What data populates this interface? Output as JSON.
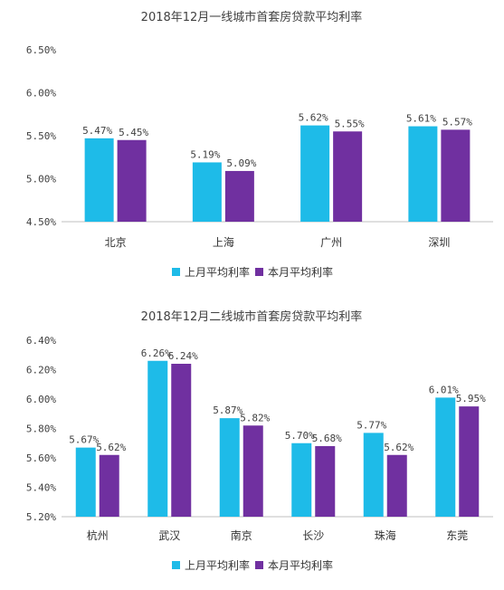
{
  "colors": {
    "last_month": "#1ebbe8",
    "this_month": "#7030a0"
  },
  "chart_data": [
    {
      "type": "bar",
      "title": "2018年12月一线城市首套房贷款平均利率",
      "categories": [
        "北京",
        "上海",
        "广州",
        "深圳"
      ],
      "series": [
        {
          "name": "上月平均利率",
          "values": [
            5.47,
            5.19,
            5.62,
            5.61
          ],
          "labels": [
            "5.47%",
            "5.19%",
            "5.62%",
            "5.61%"
          ]
        },
        {
          "name": "本月平均利率",
          "values": [
            5.45,
            5.09,
            5.55,
            5.57
          ],
          "labels": [
            "5.45%",
            "5.09%",
            "5.55%",
            "5.57%"
          ]
        }
      ],
      "ylim": [
        4.5,
        6.5
      ],
      "yticks": [
        4.5,
        5.0,
        5.5,
        6.0,
        6.5
      ],
      "ytick_labels": [
        "4.50%",
        "5.00%",
        "5.50%",
        "6.00%",
        "6.50%"
      ],
      "legend_position": "bottom",
      "grid": false
    },
    {
      "type": "bar",
      "title": "2018年12月二线城市首套房贷款平均利率",
      "categories": [
        "杭州",
        "武汉",
        "南京",
        "长沙",
        "珠海",
        "东莞"
      ],
      "series": [
        {
          "name": "上月平均利率",
          "values": [
            5.67,
            6.26,
            5.87,
            5.7,
            5.77,
            6.01
          ],
          "labels": [
            "5.67%",
            "6.26%",
            "5.87%",
            "5.70%",
            "5.77%",
            "6.01%"
          ]
        },
        {
          "name": "本月平均利率",
          "values": [
            5.62,
            6.24,
            5.82,
            5.68,
            5.62,
            5.95
          ],
          "labels": [
            "5.62%",
            "6.24%",
            "5.82%",
            "5.68%",
            "5.62%",
            "5.95%"
          ]
        }
      ],
      "ylim": [
        5.2,
        6.4
      ],
      "yticks": [
        5.2,
        5.4,
        5.6,
        5.8,
        6.0,
        6.2,
        6.4
      ],
      "ytick_labels": [
        "5.20%",
        "5.40%",
        "5.60%",
        "5.80%",
        "6.00%",
        "6.20%",
        "6.40%"
      ],
      "legend_position": "bottom",
      "grid": false
    }
  ]
}
